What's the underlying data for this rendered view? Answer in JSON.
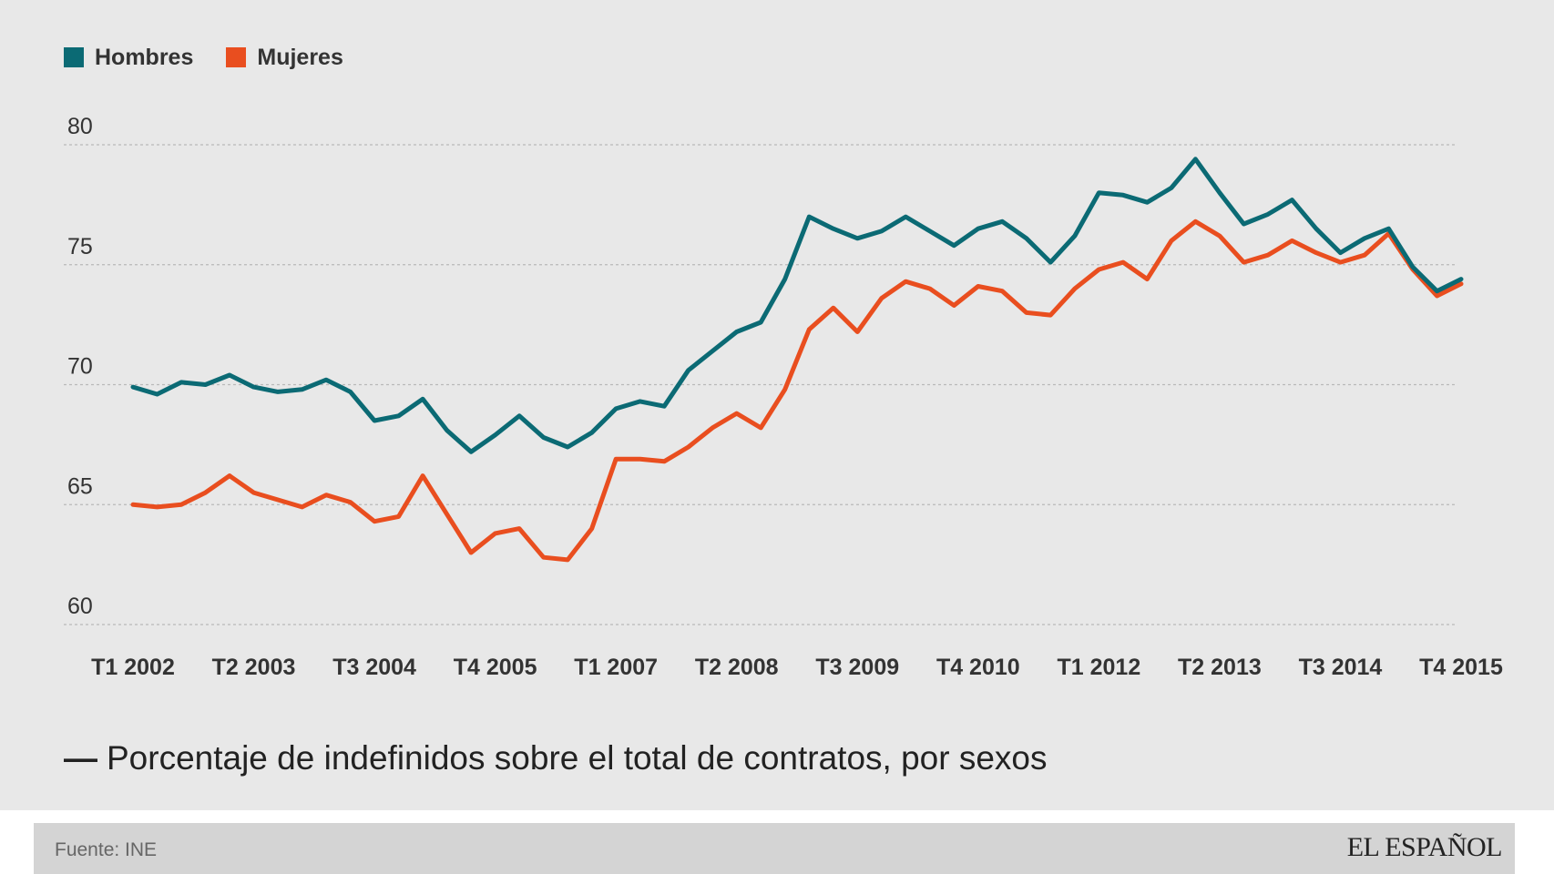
{
  "caption": {
    "dash": "—",
    "text": "Porcentaje de indefinidos sobre el total de contratos, por sexos"
  },
  "footer": {
    "source": "Fuente: INE",
    "brand": "EL ESPAÑOL"
  },
  "chart_data": {
    "type": "line",
    "title": "Porcentaje de indefinidos sobre el total de contratos, por sexos",
    "legend_position": "top-left",
    "grid": true,
    "ylim": [
      60,
      80
    ],
    "yticks": [
      60,
      65,
      70,
      75,
      80
    ],
    "x_tick_labels": [
      "T1 2002",
      "T2 2003",
      "T3 2004",
      "T4 2005",
      "T1 2007",
      "T2 2008",
      "T3 2009",
      "T4 2010",
      "T1 2012",
      "T2 2013",
      "T3 2014",
      "T4 2015"
    ],
    "x": [
      "T1 2002",
      "T2 2002",
      "T3 2002",
      "T4 2002",
      "T1 2003",
      "T2 2003",
      "T3 2003",
      "T4 2003",
      "T1 2004",
      "T2 2004",
      "T3 2004",
      "T4 2004",
      "T1 2005",
      "T2 2005",
      "T3 2005",
      "T4 2005",
      "T1 2006",
      "T2 2006",
      "T3 2006",
      "T4 2006",
      "T1 2007",
      "T2 2007",
      "T3 2007",
      "T4 2007",
      "T1 2008",
      "T2 2008",
      "T3 2008",
      "T4 2008",
      "T1 2009",
      "T2 2009",
      "T3 2009",
      "T4 2009",
      "T1 2010",
      "T2 2010",
      "T3 2010",
      "T4 2010",
      "T1 2011",
      "T2 2011",
      "T3 2011",
      "T4 2011",
      "T1 2012",
      "T2 2012",
      "T3 2012",
      "T4 2012",
      "T1 2013",
      "T2 2013",
      "T3 2013",
      "T4 2013",
      "T1 2014",
      "T2 2014",
      "T3 2014",
      "T4 2014",
      "T1 2015",
      "T2 2015",
      "T3 2015",
      "T4 2015"
    ],
    "series": [
      {
        "name": "Hombres",
        "color": "#0b6a74",
        "values": [
          69.9,
          69.6,
          70.1,
          70.0,
          70.4,
          69.9,
          69.7,
          69.8,
          70.2,
          69.7,
          68.5,
          68.7,
          69.4,
          68.1,
          67.2,
          67.9,
          68.7,
          67.8,
          67.4,
          68.0,
          69.0,
          69.3,
          69.1,
          70.6,
          71.4,
          72.2,
          72.6,
          74.4,
          77.0,
          76.5,
          76.1,
          76.4,
          77.0,
          76.4,
          75.8,
          76.5,
          76.8,
          76.1,
          75.1,
          76.2,
          78.0,
          77.9,
          77.6,
          78.2,
          79.4,
          78.0,
          76.7,
          77.1,
          77.7,
          76.5,
          75.5,
          76.1,
          76.5,
          74.9,
          73.9,
          74.4
        ]
      },
      {
        "name": "Mujeres",
        "color": "#e94e1f",
        "values": [
          65.0,
          64.9,
          65.0,
          65.5,
          66.2,
          65.5,
          65.2,
          64.9,
          65.4,
          65.1,
          64.3,
          64.5,
          66.2,
          64.6,
          63.0,
          63.8,
          64.0,
          62.8,
          62.7,
          64.0,
          66.9,
          66.9,
          66.8,
          67.4,
          68.2,
          68.8,
          68.2,
          69.8,
          72.3,
          73.2,
          72.2,
          73.6,
          74.3,
          74.0,
          73.3,
          74.1,
          73.9,
          73.0,
          72.9,
          74.0,
          74.8,
          75.1,
          74.4,
          76.0,
          76.8,
          76.2,
          75.1,
          75.4,
          76.0,
          75.5,
          75.1,
          75.4,
          76.3,
          74.8,
          73.7,
          74.2
        ]
      }
    ]
  }
}
